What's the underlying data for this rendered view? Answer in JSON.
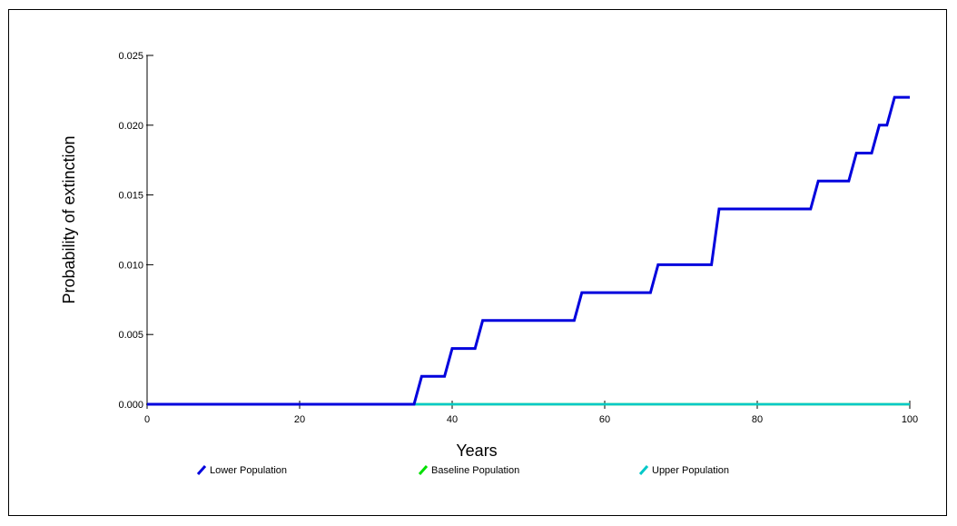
{
  "chart_data": {
    "type": "line",
    "title": "",
    "xlabel": "Years",
    "ylabel": "Probability of extinction",
    "xlim": [
      0,
      100
    ],
    "ylim": [
      0,
      0.025
    ],
    "x_ticks": [
      0,
      20,
      40,
      60,
      80,
      100
    ],
    "x_tick_labels": [
      "0",
      "20",
      "40",
      "60",
      "80",
      "100"
    ],
    "y_ticks": [
      0,
      0.005,
      0.01,
      0.015,
      0.02,
      0.025
    ],
    "y_tick_labels": [
      "0.000",
      "0.005",
      "0.010",
      "0.015",
      "0.020",
      "0.025"
    ],
    "grid": false,
    "legend_position": "bottom",
    "series": [
      {
        "name": "Lower Population",
        "color": "#0000dd",
        "x": [
          0,
          35,
          36,
          39,
          40,
          43,
          44,
          56,
          57,
          66,
          67,
          74,
          75,
          87,
          88,
          92,
          93,
          95,
          96,
          97,
          98,
          100
        ],
        "y": [
          0,
          0,
          0.002,
          0.002,
          0.004,
          0.004,
          0.006,
          0.006,
          0.008,
          0.008,
          0.01,
          0.01,
          0.014,
          0.014,
          0.016,
          0.016,
          0.018,
          0.018,
          0.02,
          0.02,
          0.022,
          0.022
        ]
      },
      {
        "name": "Baseline Population",
        "color": "#00e000",
        "x": [
          0,
          100
        ],
        "y": [
          0,
          0
        ]
      },
      {
        "name": "Upper Population",
        "color": "#00c8c8",
        "x": [
          0,
          100
        ],
        "y": [
          0,
          0
        ]
      }
    ]
  }
}
